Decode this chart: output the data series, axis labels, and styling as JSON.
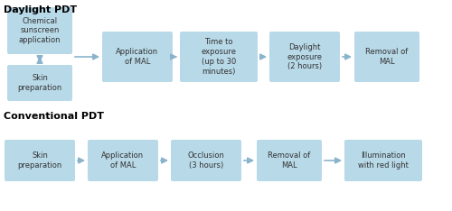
{
  "background_color": "#ffffff",
  "box_color": "#b8d9e8",
  "arrow_color": "#8ab4cc",
  "text_color": "#333333",
  "title_color": "#000000",
  "section1_title": "Daylight PDT",
  "section2_title": "Conventional PDT",
  "daylight_top_box": "Chemical\nsunscreen\napplication",
  "daylight_bot_box": "Skin\npreparation",
  "daylight_main_boxes": [
    "Application\nof MAL",
    "Time to\nexposure\n(up to 30\nminutes)",
    "Daylight\nexposure\n(2 hours)",
    "Removal of\nMAL"
  ],
  "conventional_boxes": [
    "Skin\npreparation",
    "Application\nof MAL",
    "Occlusion\n(3 hours)",
    "Removal of\nMAL",
    "Illumination\nwith red light"
  ],
  "font_size": 6.0,
  "title_font_size": 8.0
}
